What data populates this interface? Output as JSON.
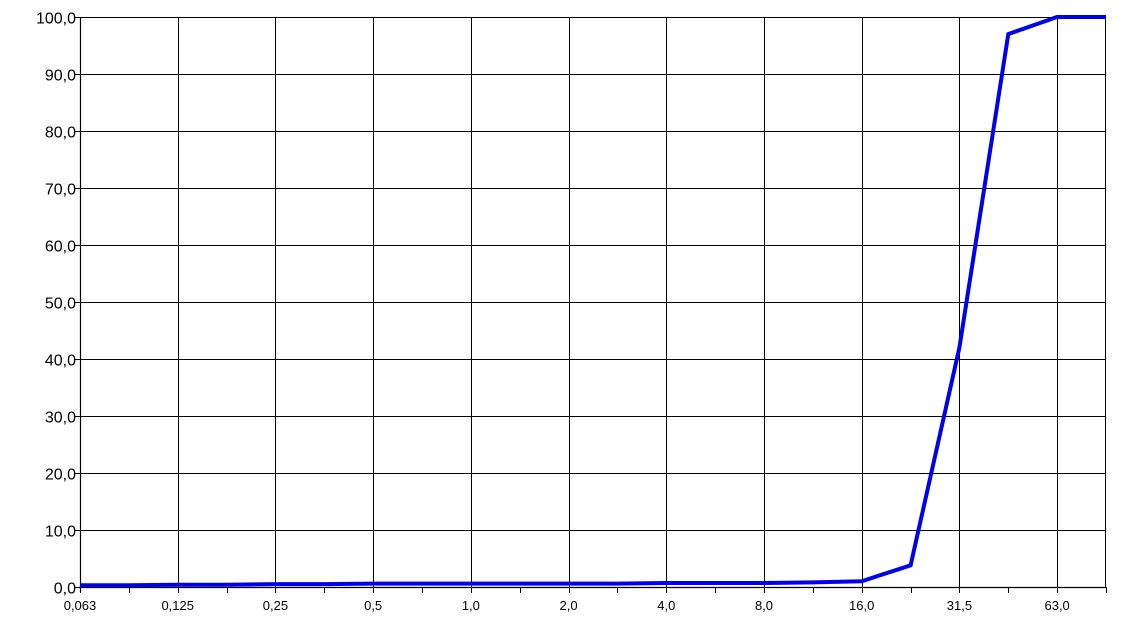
{
  "chart_data": {
    "type": "line",
    "title": "",
    "xlabel": "",
    "ylabel": "",
    "x_tick_labels": [
      "0,063",
      "0,125",
      "0,25",
      "0,5",
      "1,0",
      "2,0",
      "4,0",
      "8,0",
      "16,0",
      "31,5",
      "63,0"
    ],
    "y_tick_labels": [
      "0,0",
      "10,0",
      "20,0",
      "30,0",
      "40,0",
      "50,0",
      "60,0",
      "70,0",
      "80,0",
      "90,0",
      "100,0"
    ],
    "ylim": [
      0,
      100
    ],
    "x_positions": 21,
    "grid": true,
    "series": [
      {
        "color": "#0000ee",
        "x_index": [
          0,
          1,
          2,
          3,
          4,
          5,
          6,
          7,
          8,
          9,
          10,
          11,
          12,
          13,
          14,
          15,
          16,
          17,
          18,
          19,
          20
        ],
        "values": [
          0.3,
          0.3,
          0.4,
          0.4,
          0.5,
          0.5,
          0.6,
          0.6,
          0.6,
          0.6,
          0.6,
          0.6,
          0.7,
          0.7,
          0.7,
          0.8,
          1.0,
          3.8,
          42.0,
          97.0,
          100.0
        ]
      }
    ],
    "series_tail": {
      "x_index": 21,
      "value": 100.0
    }
  }
}
